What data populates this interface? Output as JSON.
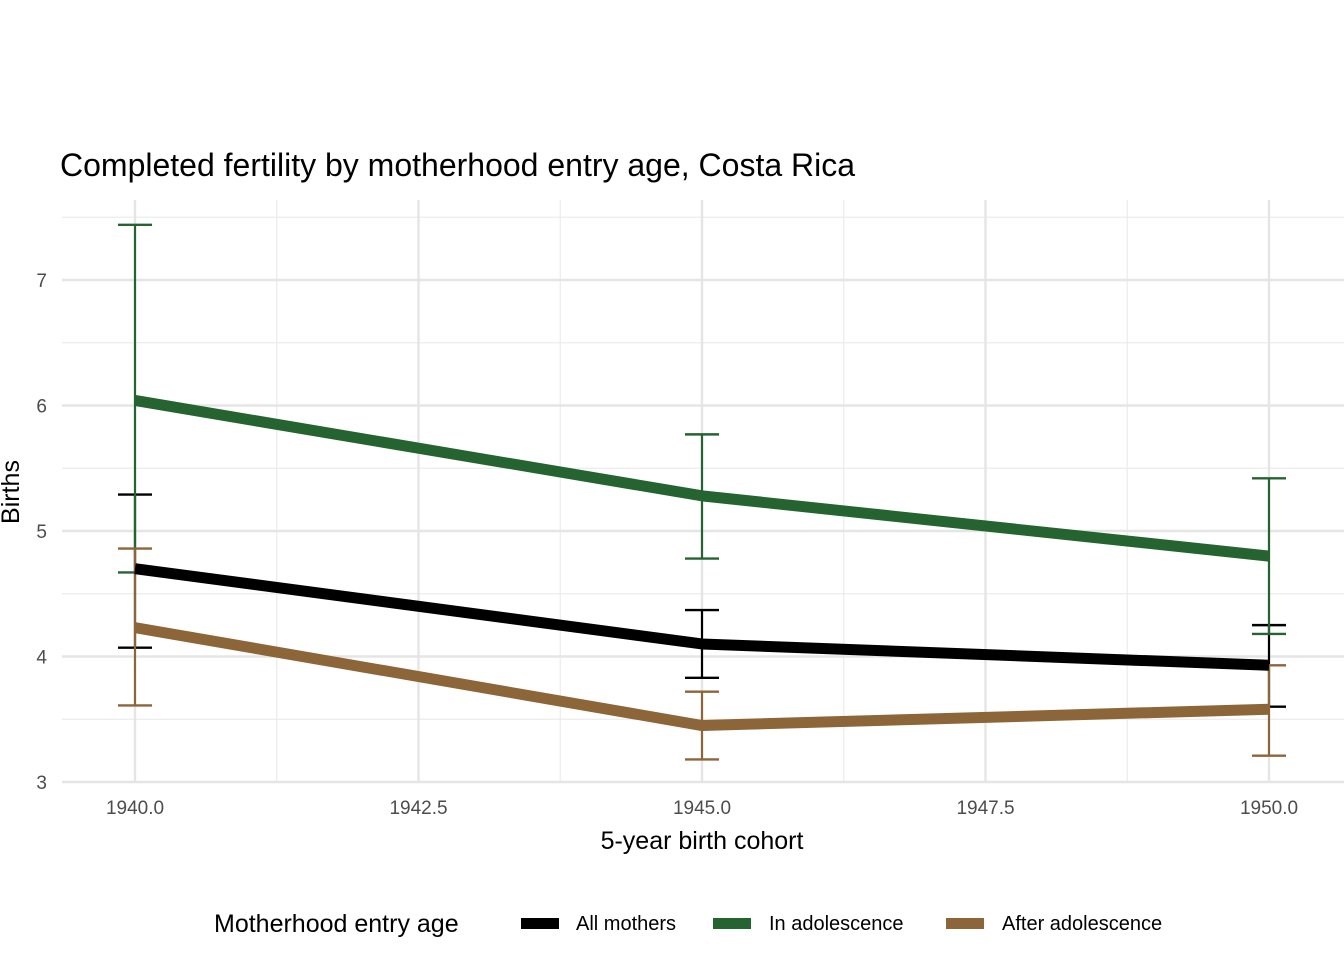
{
  "chart_data": {
    "type": "line",
    "title": "Completed fertility by motherhood entry age,  Costa Rica",
    "xlabel": "5-year birth cohort",
    "ylabel": "Births",
    "xlim": [
      1938.65,
      1951.35
    ],
    "ylim": [
      3.0,
      7.5
    ],
    "x_ticks": [
      1940.0,
      1942.5,
      1945.0,
      1947.5,
      1950.0
    ],
    "x_tick_labels": [
      "1940.0",
      "1942.5",
      "1945.0",
      "1947.5",
      "1950.0"
    ],
    "y_ticks": [
      3,
      4,
      5,
      6,
      7
    ],
    "y_tick_labels": [
      "3",
      "4",
      "5",
      "6",
      "7"
    ],
    "grid": true,
    "x": [
      1940,
      1945,
      1950
    ],
    "series": [
      {
        "name": "All mothers",
        "color": "#000000",
        "values": [
          4.7,
          4.1,
          3.93
        ],
        "lower": [
          4.07,
          3.83,
          3.6
        ],
        "upper": [
          5.29,
          4.37,
          4.25
        ]
      },
      {
        "name": "In adolescence",
        "color": "#256330",
        "values": [
          6.04,
          5.28,
          4.8
        ],
        "lower": [
          4.67,
          4.78,
          4.18
        ],
        "upper": [
          7.44,
          5.77,
          5.42
        ]
      },
      {
        "name": "After adolescence",
        "color": "#8c6538",
        "values": [
          4.23,
          3.45,
          3.58
        ],
        "lower": [
          3.61,
          3.18,
          3.21
        ],
        "upper": [
          4.86,
          3.72,
          3.93
        ]
      }
    ],
    "legend": {
      "title": "Motherhood entry age",
      "position": "bottom"
    }
  }
}
